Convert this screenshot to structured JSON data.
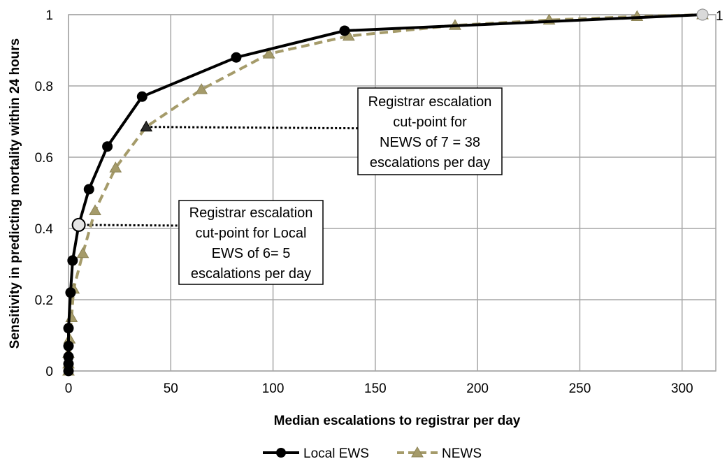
{
  "chart_data": {
    "type": "line",
    "title": "",
    "xlabel": "Median escalations to registrar per day",
    "ylabel": "Sensitivity in predicting mortality within 24 hours",
    "xlim": [
      0,
      310
    ],
    "ylim": [
      0,
      1
    ],
    "x_ticks": [
      0,
      50,
      100,
      150,
      200,
      250,
      300
    ],
    "y_ticks": [
      0,
      0.2,
      0.4,
      0.6,
      0.8,
      1
    ],
    "x_tick_labels": [
      "0",
      "50",
      "100",
      "150",
      "200",
      "250",
      "300"
    ],
    "y_tick_labels": [
      "0",
      "0.2",
      "0.4",
      "0.6",
      "0.8",
      "1"
    ],
    "grid": true,
    "legend": "bottom",
    "series": [
      {
        "name": "Local EWS",
        "color": "#000000",
        "line_style": "solid",
        "marker": "circle",
        "points": [
          [
            0,
            0
          ],
          [
            0,
            0.02
          ],
          [
            0,
            0.04
          ],
          [
            0,
            0.07
          ],
          [
            0,
            0.12
          ],
          [
            1,
            0.22
          ],
          [
            2,
            0.31
          ],
          [
            5,
            0.41
          ],
          [
            10,
            0.51
          ],
          [
            19,
            0.63
          ],
          [
            36,
            0.77
          ],
          [
            82,
            0.88
          ],
          [
            135,
            0.955
          ],
          [
            310,
            1.0
          ]
        ]
      },
      {
        "name": "NEWS",
        "color": "#a59b6a",
        "line_style": "dashed",
        "marker": "triangle",
        "points": [
          [
            0,
            0
          ],
          [
            0,
            0.02
          ],
          [
            0,
            0.05
          ],
          [
            0.5,
            0.09
          ],
          [
            1.5,
            0.15
          ],
          [
            2.5,
            0.23
          ],
          [
            7,
            0.33
          ],
          [
            13,
            0.45
          ],
          [
            23,
            0.57
          ],
          [
            38,
            0.685
          ],
          [
            65,
            0.79
          ],
          [
            98,
            0.89
          ],
          [
            137,
            0.94
          ],
          [
            189,
            0.97
          ],
          [
            235,
            0.985
          ],
          [
            278,
            0.995
          ],
          [
            310,
            1.0
          ]
        ]
      }
    ],
    "annotations": [
      {
        "text_lines": [
          "Registrar escalation",
          "cut-point for",
          "NEWS of 7 = 38",
          "escalations per day"
        ],
        "target": [
          38,
          0.685
        ]
      },
      {
        "text_lines": [
          "Registrar escalation",
          "cut-point for Local",
          "EWS of 6= 5",
          "escalations per day"
        ],
        "target": [
          5,
          0.41
        ]
      }
    ],
    "end_label": "1"
  }
}
